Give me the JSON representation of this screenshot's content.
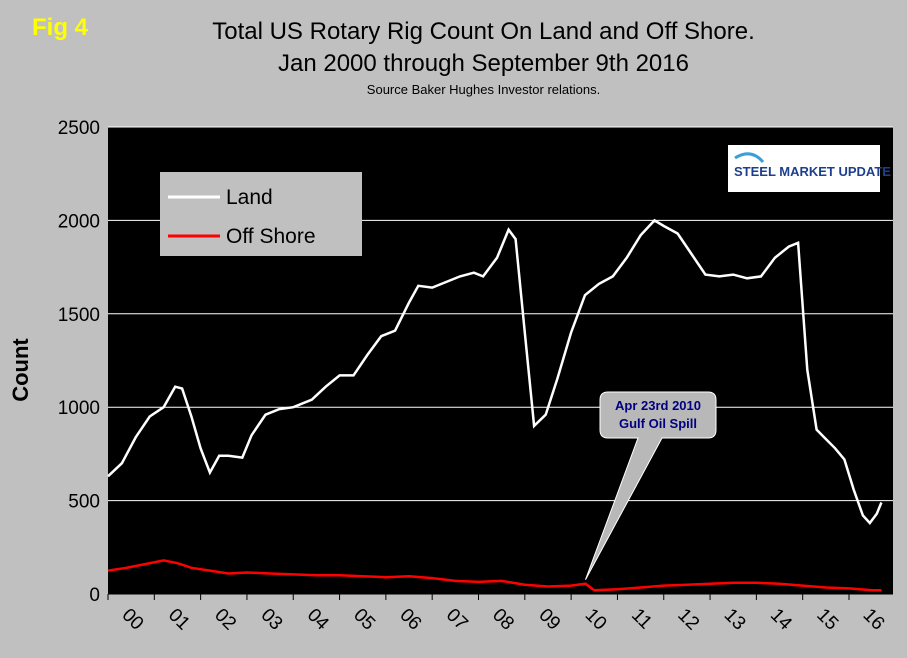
{
  "fig_label": "Fig 4",
  "title_line1": "Total US Rotary Rig Count On Land and Off Shore.",
  "title_line2": "Jan 2000 through September 9th 2016",
  "source": "Source Baker Hughes Investor relations.",
  "logo_text": "STEEL MARKET UPDATE",
  "callout": {
    "line1": "Apr 23rd 2010",
    "line2": "Gulf Oil Spill",
    "x": 2010.31,
    "y": 55
  },
  "colors": {
    "plot_bg": "#000000",
    "page_bg": "#c0c0c0",
    "land": "#ffffff",
    "offshore": "#ff0000",
    "grid": "#ffffff"
  },
  "chart_data": {
    "type": "line",
    "xlabel": "",
    "ylabel": "Count",
    "xlim": [
      2000.0,
      2016.95
    ],
    "ylim": [
      0,
      2500
    ],
    "yticks": [
      0,
      500,
      1000,
      1500,
      2000,
      2500
    ],
    "xtick_labels": [
      "00",
      "01",
      "02",
      "03",
      "04",
      "05",
      "06",
      "07",
      "08",
      "09",
      "10",
      "11",
      "12",
      "13",
      "14",
      "15",
      "16"
    ],
    "grid": true,
    "legend_position": "top-left",
    "series": [
      {
        "name": "Land",
        "color": "#ffffff",
        "x": [
          2000.0,
          2000.3,
          2000.6,
          2000.9,
          2001.2,
          2001.45,
          2001.6,
          2001.8,
          2002.0,
          2002.2,
          2002.4,
          2002.6,
          2002.9,
          2003.1,
          2003.4,
          2003.7,
          2004.0,
          2004.4,
          2004.7,
          2005.0,
          2005.3,
          2005.6,
          2005.9,
          2006.2,
          2006.5,
          2006.7,
          2007.0,
          2007.3,
          2007.6,
          2007.9,
          2008.1,
          2008.4,
          2008.65,
          2008.8,
          2009.0,
          2009.2,
          2009.45,
          2009.7,
          2010.0,
          2010.3,
          2010.6,
          2010.9,
          2011.2,
          2011.5,
          2011.8,
          2012.0,
          2012.3,
          2012.6,
          2012.9,
          2013.2,
          2013.5,
          2013.8,
          2014.1,
          2014.4,
          2014.7,
          2014.9,
          2015.1,
          2015.3,
          2015.5,
          2015.7,
          2015.9,
          2016.1,
          2016.3,
          2016.45,
          2016.6,
          2016.7
        ],
        "y": [
          630,
          700,
          840,
          950,
          1000,
          1110,
          1100,
          950,
          780,
          650,
          740,
          740,
          730,
          850,
          960,
          990,
          1000,
          1040,
          1110,
          1170,
          1170,
          1280,
          1380,
          1410,
          1560,
          1650,
          1640,
          1670,
          1700,
          1720,
          1700,
          1800,
          1950,
          1900,
          1400,
          900,
          960,
          1150,
          1400,
          1600,
          1660,
          1700,
          1800,
          1920,
          2000,
          1970,
          1930,
          1820,
          1710,
          1700,
          1710,
          1690,
          1700,
          1800,
          1860,
          1880,
          1200,
          880,
          830,
          780,
          720,
          560,
          420,
          380,
          430,
          490
        ]
      },
      {
        "name": "Off Shore",
        "color": "#ff0000",
        "x": [
          2000.0,
          2000.4,
          2000.8,
          2001.2,
          2001.5,
          2001.8,
          2002.2,
          2002.6,
          2003.0,
          2003.5,
          2004.0,
          2004.5,
          2005.0,
          2005.5,
          2006.0,
          2006.5,
          2007.0,
          2007.5,
          2008.0,
          2008.5,
          2009.0,
          2009.5,
          2010.0,
          2010.31,
          2010.5,
          2011.0,
          2011.5,
          2012.0,
          2012.5,
          2013.0,
          2013.5,
          2014.0,
          2014.5,
          2015.0,
          2015.5,
          2016.0,
          2016.5,
          2016.7
        ],
        "y": [
          125,
          140,
          160,
          180,
          165,
          140,
          125,
          110,
          115,
          110,
          105,
          100,
          100,
          95,
          90,
          95,
          85,
          70,
          65,
          70,
          50,
          40,
          45,
          55,
          20,
          25,
          35,
          45,
          50,
          55,
          60,
          60,
          55,
          45,
          35,
          30,
          20,
          20
        ]
      }
    ]
  }
}
